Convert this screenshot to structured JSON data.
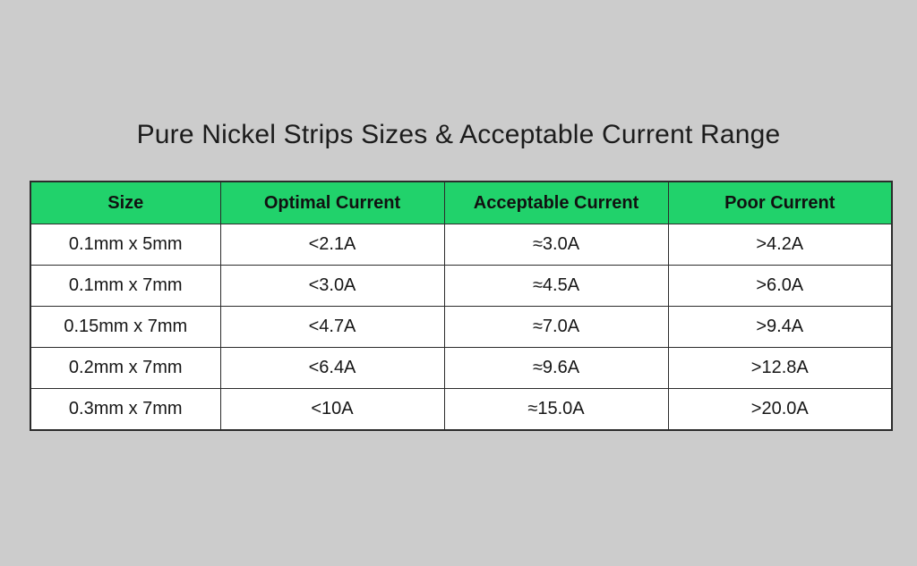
{
  "page": {
    "background_color": "#cccccc",
    "title": "Pure Nickel Strips Sizes & Acceptable Current Range"
  },
  "table": {
    "header_bg_color": "#21d26b",
    "border_color": "#2b2b2b",
    "columns": [
      "Size",
      "Optimal Current",
      "Acceptable Current",
      "Poor Current"
    ],
    "rows": [
      [
        "0.1mm x 5mm",
        "<2.1A",
        "≈3.0A",
        ">4.2A"
      ],
      [
        "0.1mm x 7mm",
        "<3.0A",
        "≈4.5A",
        ">6.0A"
      ],
      [
        "0.15mm x 7mm",
        "<4.7A",
        "≈7.0A",
        ">9.4A"
      ],
      [
        "0.2mm x 7mm",
        "<6.4A",
        "≈9.6A",
        ">12.8A"
      ],
      [
        "0.3mm x 7mm",
        "<10A",
        "≈15.0A",
        ">20.0A"
      ]
    ]
  },
  "chart_data": {
    "type": "table",
    "title": "Pure Nickel Strips Sizes & Acceptable Current Range",
    "columns": [
      "Size",
      "Optimal Current",
      "Acceptable Current",
      "Poor Current"
    ],
    "rows": [
      {
        "size": "0.1mm x 5mm",
        "optimal_current": "<2.1A",
        "acceptable_current": "≈3.0A",
        "poor_current": ">4.2A"
      },
      {
        "size": "0.1mm x 7mm",
        "optimal_current": "<3.0A",
        "acceptable_current": "≈4.5A",
        "poor_current": ">6.0A"
      },
      {
        "size": "0.15mm x 7mm",
        "optimal_current": "<4.7A",
        "acceptable_current": "≈7.0A",
        "poor_current": ">9.4A"
      },
      {
        "size": "0.2mm x 7mm",
        "optimal_current": "<6.4A",
        "acceptable_current": "≈9.6A",
        "poor_current": ">12.8A"
      },
      {
        "size": "0.3mm x 7mm",
        "optimal_current": "<10A",
        "acceptable_current": "≈15.0A",
        "poor_current": ">20.0A"
      }
    ]
  }
}
